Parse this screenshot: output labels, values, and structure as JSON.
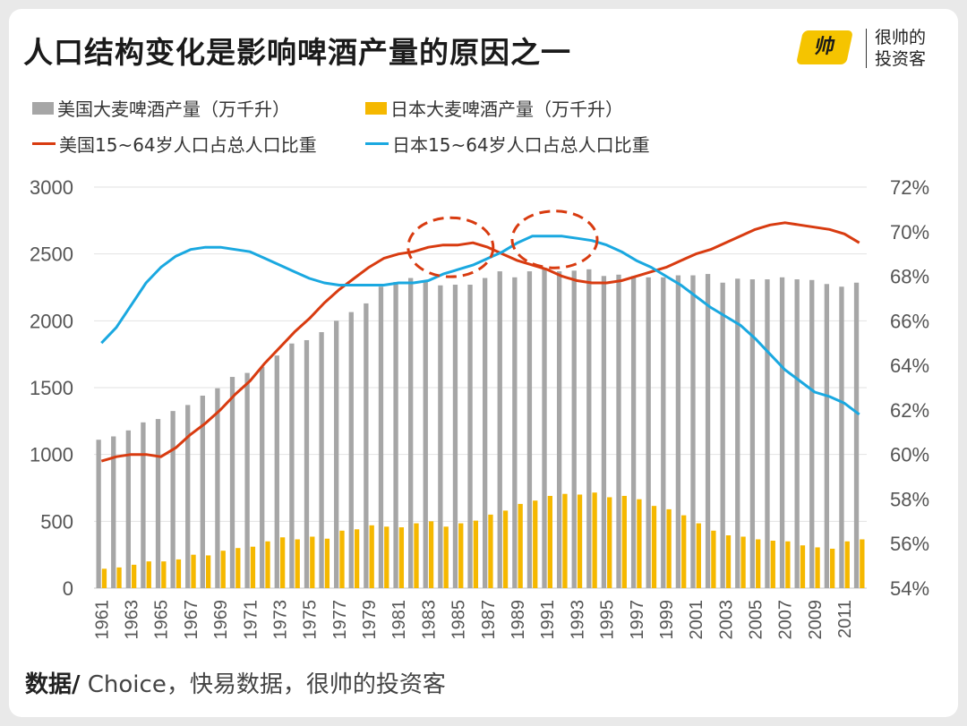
{
  "header": {
    "title": "人口结构变化是影响啤酒产量的原因之一",
    "brand_logo_text": "帅",
    "brand_line1": "很帅的",
    "brand_line2": "投资客"
  },
  "legend": [
    {
      "label": "美国大麦啤酒产量（万千升）",
      "kind": "bar",
      "color": "#a6a6a6"
    },
    {
      "label": "日本大麦啤酒产量（万千升）",
      "kind": "bar",
      "color": "#f5b800"
    },
    {
      "label": "美国15~64岁人口占总人口比重",
      "kind": "line",
      "color": "#d83b10"
    },
    {
      "label": "日本15~64岁人口占总人口比重",
      "kind": "line",
      "color": "#1aa8e0"
    }
  ],
  "footer": {
    "source_label": "数据/",
    "source_text": " Choice，快易数据，很帅的投资客"
  },
  "chart_data": {
    "type": "bar",
    "x": [
      1961,
      1962,
      1963,
      1964,
      1965,
      1966,
      1967,
      1968,
      1969,
      1970,
      1971,
      1972,
      1973,
      1974,
      1975,
      1976,
      1977,
      1978,
      1979,
      1980,
      1981,
      1982,
      1983,
      1984,
      1985,
      1986,
      1987,
      1988,
      1989,
      1990,
      1991,
      1992,
      1993,
      1994,
      1995,
      1996,
      1997,
      1998,
      1999,
      2000,
      2001,
      2002,
      2003,
      2004,
      2005,
      2006,
      2007,
      2008,
      2009,
      2010,
      2011,
      2012
    ],
    "x_tick_labels": [
      "1961",
      "1963",
      "1965",
      "1967",
      "1969",
      "1971",
      "1973",
      "1975",
      "1977",
      "1979",
      "1981",
      "1983",
      "1985",
      "1987",
      "1989",
      "1991",
      "1993",
      "1995",
      "1997",
      "1999",
      "2001",
      "2003",
      "2005",
      "2007",
      "2009",
      "2011"
    ],
    "ylim_left": [
      0,
      3000
    ],
    "y_ticks_left": [
      0,
      500,
      1000,
      1500,
      2000,
      2500,
      3000
    ],
    "ylim_right": [
      54,
      72
    ],
    "y_ticks_right": [
      "54%",
      "56%",
      "58%",
      "60%",
      "62%",
      "64%",
      "66%",
      "68%",
      "70%",
      "72%"
    ],
    "y_ticks_right_values": [
      54,
      56,
      58,
      60,
      62,
      64,
      66,
      68,
      70,
      72
    ],
    "grid": "horizontal",
    "series": [
      {
        "name": "美国大麦啤酒产量（万千升）",
        "axis": "left",
        "type": "bar",
        "color": "#a6a6a6",
        "values": [
          1110,
          1135,
          1180,
          1240,
          1265,
          1325,
          1370,
          1440,
          1495,
          1580,
          1610,
          1655,
          1740,
          1830,
          1855,
          1915,
          2000,
          2065,
          2130,
          2255,
          2290,
          2320,
          2290,
          2265,
          2270,
          2270,
          2320,
          2370,
          2325,
          2370,
          2395,
          2370,
          2375,
          2385,
          2335,
          2345,
          2335,
          2325,
          2325,
          2340,
          2340,
          2350,
          2285,
          2315,
          2310,
          2310,
          2325,
          2310,
          2305,
          2275,
          2255,
          2285
        ]
      },
      {
        "name": "日本大麦啤酒产量（万千升）",
        "axis": "left",
        "type": "bar",
        "color": "#f5b800",
        "values": [
          145,
          155,
          175,
          200,
          200,
          215,
          250,
          245,
          280,
          300,
          310,
          350,
          380,
          365,
          385,
          370,
          430,
          440,
          470,
          460,
          455,
          485,
          500,
          460,
          485,
          505,
          550,
          580,
          630,
          655,
          690,
          705,
          700,
          715,
          680,
          690,
          665,
          615,
          590,
          545,
          485,
          430,
          395,
          385,
          365,
          355,
          350,
          320,
          305,
          295,
          350,
          365
        ]
      },
      {
        "name": "美国15~64岁人口占总人口比重",
        "axis": "right",
        "type": "line",
        "color": "#d83b10",
        "values": [
          59.7,
          59.9,
          60.0,
          60.0,
          59.9,
          60.3,
          60.9,
          61.4,
          62.0,
          62.7,
          63.3,
          64.1,
          64.8,
          65.5,
          66.1,
          66.8,
          67.4,
          67.9,
          68.4,
          68.8,
          69.0,
          69.1,
          69.3,
          69.4,
          69.4,
          69.5,
          69.3,
          69.0,
          68.7,
          68.5,
          68.3,
          68.0,
          67.8,
          67.7,
          67.7,
          67.8,
          68.0,
          68.2,
          68.4,
          68.7,
          69.0,
          69.2,
          69.5,
          69.8,
          70.1,
          70.3,
          70.4,
          70.3,
          70.2,
          70.1,
          69.9,
          69.5
        ]
      },
      {
        "name": "日本15~64岁人口占总人口比重",
        "axis": "right",
        "type": "line",
        "color": "#1aa8e0",
        "values": [
          65.0,
          65.7,
          66.7,
          67.7,
          68.4,
          68.9,
          69.2,
          69.3,
          69.3,
          69.2,
          69.1,
          68.8,
          68.5,
          68.2,
          67.9,
          67.7,
          67.6,
          67.6,
          67.6,
          67.6,
          67.7,
          67.7,
          67.8,
          68.1,
          68.3,
          68.5,
          68.8,
          69.1,
          69.5,
          69.8,
          69.8,
          69.8,
          69.7,
          69.6,
          69.4,
          69.1,
          68.7,
          68.4,
          68.0,
          67.6,
          67.1,
          66.6,
          66.2,
          65.8,
          65.2,
          64.5,
          63.8,
          63.3,
          62.8,
          62.6,
          62.3,
          61.8
        ]
      }
    ],
    "annotations": [
      {
        "shape": "dashed-ellipse",
        "color": "#d83b10",
        "year_from": 1982,
        "year_to": 1987
      },
      {
        "shape": "dashed-ellipse",
        "color": "#d83b10",
        "year_from": 1989,
        "year_to": 1994
      }
    ]
  }
}
